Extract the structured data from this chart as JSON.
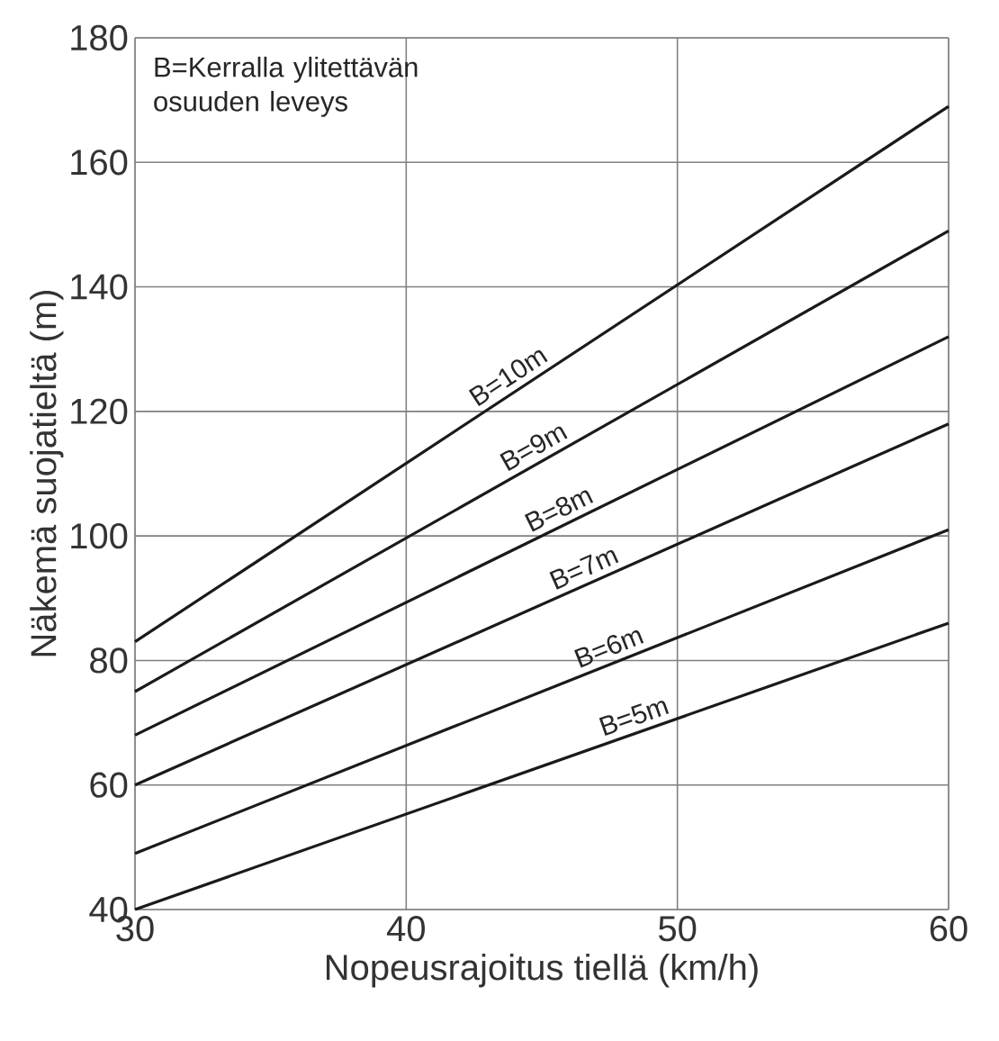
{
  "chart_data": {
    "type": "line",
    "xlabel": "Nopeusrajoitus tiellä (km/h)",
    "ylabel": "Näkemä suojatieltä (m)",
    "annotations": [
      "B=Kerralla ylitettävän osuuden leveys"
    ],
    "x": [
      30,
      60
    ],
    "series": [
      {
        "name": "B=10m",
        "color": "#1a1a1a",
        "values": [
          83,
          169
        ]
      },
      {
        "name": "B=9m",
        "color": "#1a1a1a",
        "values": [
          75,
          149
        ]
      },
      {
        "name": "B=8m",
        "color": "#1a1a1a",
        "values": [
          68,
          132
        ]
      },
      {
        "name": "B=7m",
        "color": "#1a1a1a",
        "values": [
          60,
          118
        ]
      },
      {
        "name": "B=6m",
        "color": "#1a1a1a",
        "values": [
          49,
          101
        ]
      },
      {
        "name": "B=5m",
        "color": "#1a1a1a",
        "values": [
          40,
          86
        ]
      }
    ],
    "xlim": [
      30,
      60
    ],
    "xticks": [
      30,
      40,
      50,
      60
    ],
    "ylim": [
      40,
      180
    ],
    "yticks": [
      40,
      60,
      80,
      100,
      120,
      140,
      160,
      180
    ],
    "grid": true,
    "marker": "none",
    "line_style": "solid"
  }
}
